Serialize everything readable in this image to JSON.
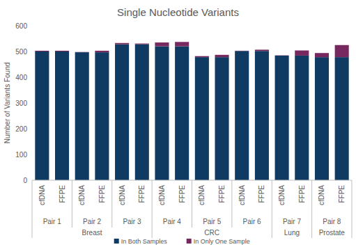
{
  "chart_data": {
    "type": "bar",
    "title": "Single Nucleotide Variants",
    "y_label": "Number of Variants Found",
    "categories": [
      "cfDNA",
      "FFPE",
      "cfDNA",
      "FFPE",
      "cfDNA",
      "FFPE",
      "cfDNA",
      "FFPE",
      "cfDNA",
      "FFPE",
      "cfDNA",
      "FFPE",
      "cfDNA",
      "FFPE",
      "cfDNA",
      "FFPE"
    ],
    "pair_labels": [
      "Pair 1",
      "Pair 2",
      "Pair 3",
      "Pair 4",
      "Pair 5",
      "Pair 6",
      "Pair 7",
      "Pair 8"
    ],
    "group_labels": [
      {
        "label": "Breast",
        "pairs": 3
      },
      {
        "label": "CRC",
        "pairs": 3
      },
      {
        "label": "Lung",
        "pairs": 1
      },
      {
        "label": "Prostate",
        "pairs": 1
      }
    ],
    "series": [
      {
        "name": "In Both Samples",
        "color": "#0f3b63",
        "values": [
          500,
          500,
          497,
          497,
          528,
          528,
          520,
          520,
          478,
          478,
          502,
          502,
          484,
          484,
          478,
          478
        ]
      },
      {
        "name": "In Only One Sample",
        "color": "#77285e",
        "values": [
          3,
          3,
          1,
          6,
          5,
          3,
          15,
          17,
          4,
          9,
          1,
          5,
          1,
          20,
          16,
          47
        ]
      }
    ],
    "stacked": true,
    "ylim": [
      0,
      600
    ],
    "yticks": [
      0,
      100,
      200,
      300,
      400,
      500,
      600
    ],
    "grid": false,
    "legend": "bottom"
  }
}
